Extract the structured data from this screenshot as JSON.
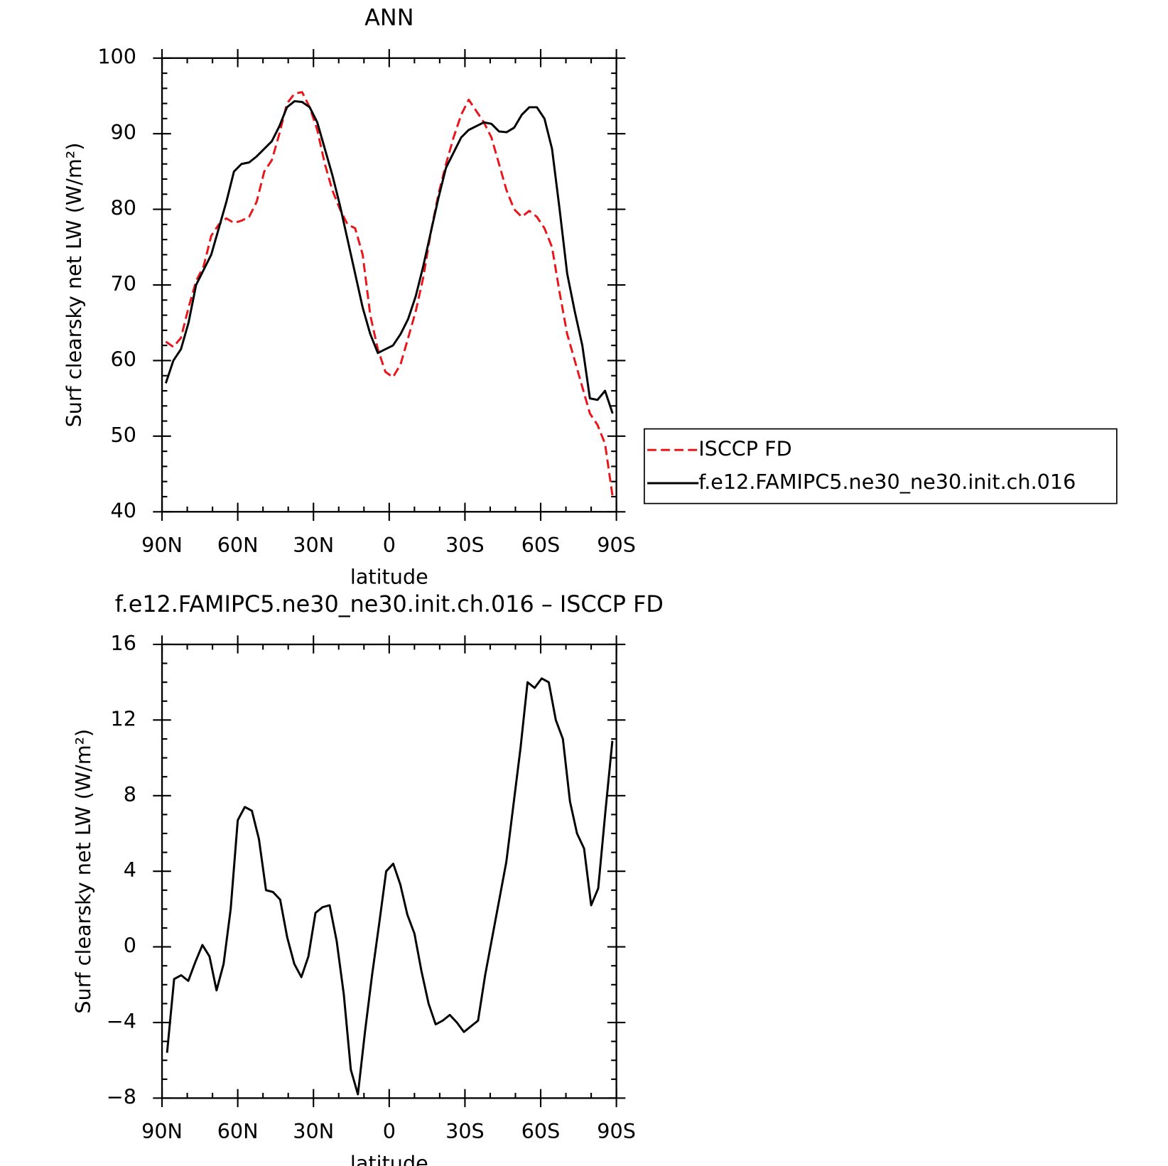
{
  "chart_data": [
    {
      "type": "line",
      "title": "ANN",
      "x_label": "latitude",
      "y_label": "Surf clearsky net LW (W/m²)",
      "x": [
        88.5,
        85.5,
        82.5,
        79.5,
        76.5,
        73.5,
        70.5,
        67.5,
        64.5,
        61.5,
        58.5,
        55.5,
        52.5,
        49.5,
        46.5,
        43.5,
        40.5,
        37.5,
        34.5,
        31.5,
        28.5,
        25.5,
        22.5,
        19.5,
        16.5,
        13.5,
        10.5,
        7.5,
        4.5,
        1.5,
        -1.5,
        -4.5,
        -7.5,
        -10.5,
        -13.5,
        -16.5,
        -19.5,
        -22.5,
        -25.5,
        -28.5,
        -31.5,
        -34.5,
        -37.5,
        -40.5,
        -43.5,
        -46.5,
        -49.5,
        -52.5,
        -55.5,
        -58.5,
        -61.5,
        -64.5,
        -67.5,
        -70.5,
        -73.5,
        -76.5,
        -79.5,
        -82.5,
        -85.5,
        -88.5
      ],
      "series": [
        {
          "name": "ISCCP FD",
          "color": "#e8161b",
          "line_style": "dashed",
          "values": [
            62.5,
            61.8,
            63,
            67,
            70.5,
            72.5,
            76.5,
            78,
            78.8,
            78.2,
            78.5,
            79,
            81,
            85,
            86.5,
            90,
            94,
            95.3,
            95.5,
            93.5,
            90.5,
            86,
            82.5,
            80,
            78,
            77.5,
            74,
            66,
            61.5,
            58.5,
            57.8,
            59.5,
            63,
            66.5,
            71,
            77,
            82,
            86,
            89.5,
            92.5,
            94.5,
            93,
            91.5,
            89.5,
            86,
            82.5,
            80,
            79,
            79.8,
            79,
            77.5,
            75,
            69,
            63.5,
            60,
            56.5,
            53,
            51.5,
            49,
            42
          ]
        },
        {
          "name": "f.e12.FAMIPC5.ne30_ne30.init.ch.016",
          "color": "#000000",
          "line_style": "solid",
          "values": [
            57,
            60,
            61.5,
            65,
            70,
            72,
            74,
            77.5,
            81,
            85,
            86,
            86.2,
            87,
            88,
            89,
            91,
            93.5,
            94.3,
            94.2,
            93.5,
            91.5,
            88,
            84.5,
            80.5,
            76,
            71.5,
            67,
            63.5,
            61,
            61.5,
            62,
            63.5,
            65.5,
            68.5,
            72.5,
            77,
            81.5,
            85.5,
            87.5,
            89.5,
            90.5,
            91,
            91.5,
            91.3,
            90.3,
            90.2,
            90.8,
            92.5,
            93.5,
            93.5,
            92,
            88,
            80,
            71.5,
            66.5,
            62,
            55,
            54.8,
            56,
            53
          ]
        }
      ],
      "xlim": [
        90,
        -90
      ],
      "xticks": [
        {
          "value": 90,
          "label": "90N"
        },
        {
          "value": 60,
          "label": "60N"
        },
        {
          "value": 30,
          "label": "30N"
        },
        0,
        {
          "value": -30,
          "label": "30S"
        },
        {
          "value": -60,
          "label": "60S"
        },
        {
          "value": -90,
          "label": "90S"
        }
      ],
      "ylim": [
        40,
        100
      ],
      "yticks": [
        40,
        50,
        60,
        70,
        80,
        90,
        100
      ],
      "legend": "outside-right"
    },
    {
      "type": "line",
      "title": "f.e12.FAMIPC5.ne30_ne30.init.ch.016 – ISCCP FD",
      "x_label": "latitude",
      "y_label": "Surf clearsky net LW (W/m²)",
      "x": [
        88,
        85.2,
        82.4,
        79.6,
        76.8,
        74,
        71.2,
        68.4,
        65.6,
        62.8,
        60,
        57.2,
        54.4,
        51.6,
        48.8,
        46,
        43.2,
        40.4,
        37.6,
        34.8,
        32,
        29.2,
        26.4,
        23.6,
        20.8,
        18,
        15.2,
        12.4,
        9.6,
        6.8,
        4,
        1.2,
        -1.6,
        -4.4,
        -7.2,
        -10,
        -12.8,
        -15.6,
        -18.4,
        -21.2,
        -24,
        -26.8,
        -29.6,
        -32.4,
        -35.2,
        -38,
        -40.8,
        -43.6,
        -46.4,
        -49.2,
        -52,
        -54.8,
        -57.6,
        -60.4,
        -63.2,
        -66,
        -68.8,
        -71.6,
        -74.4,
        -77.2,
        -80,
        -82.8,
        -85.6,
        -88.4
      ],
      "series": [
        {
          "color": "#000000",
          "line_style": "solid",
          "values": [
            -5.6,
            -1.7,
            -1.5,
            -1.8,
            -0.8,
            0.1,
            -0.5,
            -2.3,
            -0.9,
            2,
            6.7,
            7.4,
            7.2,
            5.7,
            3,
            2.9,
            2.5,
            0.5,
            -0.9,
            -1.6,
            -0.5,
            1.8,
            2.1,
            2.2,
            0.3,
            -2.5,
            -6.5,
            -7.8,
            -4.5,
            -1.5,
            1.2,
            4,
            4.4,
            3.3,
            1.7,
            0.7,
            -1.3,
            -3,
            -4.1,
            -3.9,
            -3.6,
            -4,
            -4.5,
            -4.2,
            -3.9,
            -1.5,
            0.5,
            2.5,
            4.5,
            7.5,
            10.5,
            14,
            13.7,
            14.2,
            14,
            12,
            11,
            7.7,
            6,
            5.2,
            2.2,
            3.1,
            7.1,
            10.9
          ]
        }
      ],
      "xlim": [
        90,
        -90
      ],
      "xticks": [
        {
          "value": 90,
          "label": "90N"
        },
        {
          "value": 60,
          "label": "60N"
        },
        {
          "value": 30,
          "label": "30N"
        },
        0,
        {
          "value": -30,
          "label": "30S"
        },
        {
          "value": -60,
          "label": "60S"
        },
        {
          "value": -90,
          "label": "90S"
        }
      ],
      "ylim": [
        -8,
        16
      ],
      "yticks": [
        {
          "value": -8,
          "label": "−8"
        },
        {
          "value": -4,
          "label": "−4"
        },
        0,
        4,
        8,
        12,
        16
      ]
    }
  ]
}
